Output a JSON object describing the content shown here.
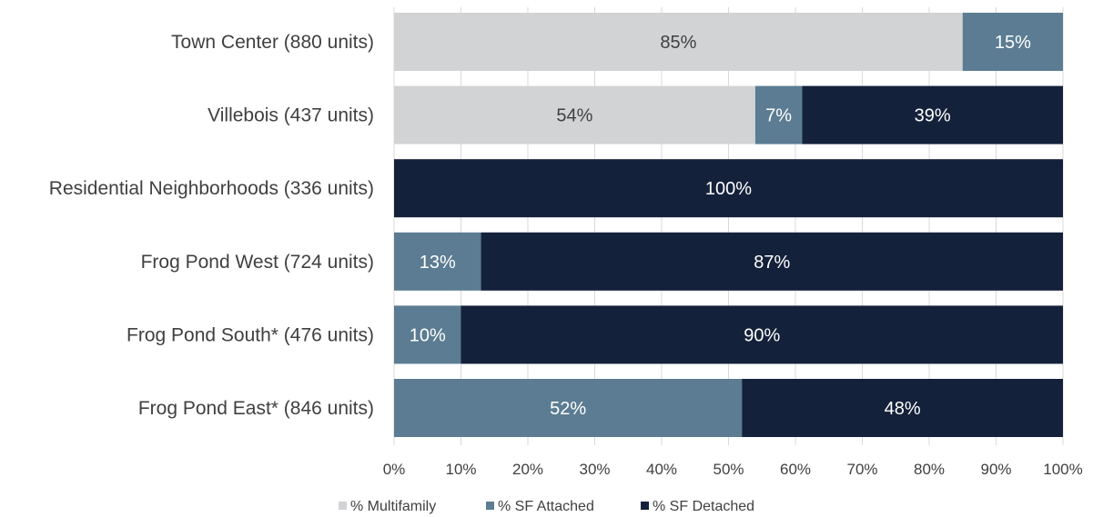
{
  "chart_data": {
    "type": "bar",
    "orientation": "horizontal",
    "stacked": true,
    "title": "",
    "xlabel": "",
    "ylabel": "",
    "xlim": [
      0,
      100
    ],
    "x_ticks": [
      0,
      10,
      20,
      30,
      40,
      50,
      60,
      70,
      80,
      90,
      100
    ],
    "x_tick_labels": [
      "0%",
      "10%",
      "20%",
      "30%",
      "40%",
      "50%",
      "60%",
      "70%",
      "80%",
      "90%",
      "100%"
    ],
    "grid": "vertical",
    "legend_position": "bottom",
    "categories": [
      "Town Center (880 units)",
      "Villebois (437 units)",
      "Residential Neighborhoods (336 units)",
      "Frog Pond West (724 units)",
      "Frog Pond South* (476 units)",
      "Frog Pond East* (846 units)"
    ],
    "series": [
      {
        "name": "% Multifamily",
        "color": "#d1d3d4",
        "label_color": "#404040",
        "values": [
          85,
          54,
          0,
          0,
          0,
          0
        ],
        "labels": [
          "85%",
          "54%",
          "",
          "",
          "",
          ""
        ]
      },
      {
        "name": "% SF Attached",
        "color": "#5b7c92",
        "label_color": "#ffffff",
        "values": [
          15,
          7,
          0,
          13,
          10,
          52
        ],
        "labels": [
          "15%",
          "7%",
          "",
          "13%",
          "10%",
          "52%"
        ]
      },
      {
        "name": "% SF Detached",
        "color": "#14213a",
        "label_color": "#ffffff",
        "values": [
          0,
          39,
          100,
          87,
          90,
          48
        ],
        "labels": [
          "",
          "39%",
          "100%",
          "87%",
          "90%",
          "48%"
        ]
      }
    ]
  }
}
